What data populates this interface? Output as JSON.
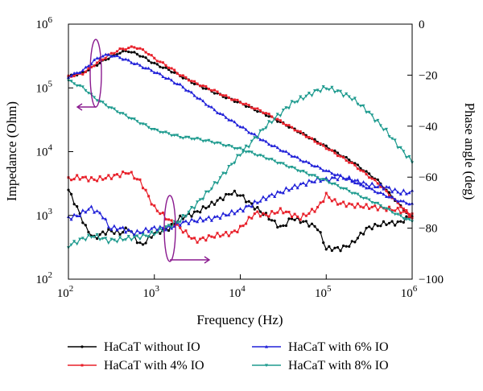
{
  "chart_data": {
    "type": "line",
    "title": "",
    "xlabel": "Frequency (Hz)",
    "ylabel_left": "Impedance (Ohm)",
    "ylabel_right": "Phase angle (deg)",
    "x_scale": "log",
    "y_left_scale": "log",
    "xlim": [
      100,
      1000000
    ],
    "ylim_left": [
      100,
      1000000
    ],
    "ylim_right": [
      -100,
      0
    ],
    "x_tick_labels": [
      {
        "base": "10",
        "exp": "2"
      },
      {
        "base": "10",
        "exp": "3"
      },
      {
        "base": "10",
        "exp": "4"
      },
      {
        "base": "10",
        "exp": "5"
      },
      {
        "base": "10",
        "exp": "6"
      }
    ],
    "y_left_tick_labels": [
      {
        "base": "10",
        "exp": "2"
      },
      {
        "base": "10",
        "exp": "3"
      },
      {
        "base": "10",
        "exp": "4"
      },
      {
        "base": "10",
        "exp": "5"
      },
      {
        "base": "10",
        "exp": "6"
      }
    ],
    "y_right_tick_labels": [
      "0",
      "−20",
      "−40",
      "−60",
      "−80",
      "−100"
    ],
    "grid": false,
    "legend_position": "bottom",
    "series": [
      {
        "name": "HaCaT without IO",
        "color": "#000000",
        "marker": "circle",
        "impedance": [
          [
            100,
            150000
          ],
          [
            150,
            175000
          ],
          [
            200,
            220000
          ],
          [
            300,
            300000
          ],
          [
            400,
            360000
          ],
          [
            500,
            380000
          ],
          [
            700,
            320000
          ],
          [
            1000,
            240000
          ],
          [
            1500,
            190000
          ],
          [
            2000,
            155000
          ],
          [
            3000,
            115000
          ],
          [
            5000,
            85000
          ],
          [
            7000,
            70000
          ],
          [
            10000,
            58000
          ],
          [
            20000,
            38000
          ],
          [
            50000,
            20000
          ],
          [
            100000,
            12000
          ],
          [
            200000,
            7000
          ],
          [
            400000,
            3500
          ],
          [
            700000,
            1500
          ],
          [
            1000000,
            900
          ]
        ],
        "phase": [
          [
            100,
            -65
          ],
          [
            130,
            -73
          ],
          [
            160,
            -80
          ],
          [
            200,
            -84
          ],
          [
            250,
            -82
          ],
          [
            300,
            -81
          ],
          [
            400,
            -82
          ],
          [
            500,
            -80
          ],
          [
            700,
            -87
          ],
          [
            1000,
            -82
          ],
          [
            1500,
            -80
          ],
          [
            2000,
            -76
          ],
          [
            3000,
            -74
          ],
          [
            5000,
            -70
          ],
          [
            8000,
            -66
          ],
          [
            10000,
            -67
          ],
          [
            15000,
            -72
          ],
          [
            20000,
            -75
          ],
          [
            30000,
            -80
          ],
          [
            40000,
            -76
          ],
          [
            60000,
            -78
          ],
          [
            80000,
            -80
          ],
          [
            100000,
            -88
          ],
          [
            150000,
            -88
          ],
          [
            200000,
            -86
          ],
          [
            300000,
            -80
          ],
          [
            500000,
            -78
          ],
          [
            700000,
            -78
          ],
          [
            1000000,
            -75
          ]
        ]
      },
      {
        "name": "HaCaT with 4% IO",
        "color": "#e8202a",
        "marker": "square",
        "impedance": [
          [
            100,
            150000
          ],
          [
            150,
            170000
          ],
          [
            200,
            230000
          ],
          [
            300,
            330000
          ],
          [
            400,
            400000
          ],
          [
            600,
            440000
          ],
          [
            800,
            370000
          ],
          [
            1000,
            290000
          ],
          [
            1500,
            210000
          ],
          [
            2000,
            160000
          ],
          [
            3000,
            120000
          ],
          [
            5000,
            90000
          ],
          [
            7000,
            72000
          ],
          [
            10000,
            60000
          ],
          [
            20000,
            40000
          ],
          [
            50000,
            20000
          ],
          [
            100000,
            11500
          ],
          [
            200000,
            6500
          ],
          [
            400000,
            3200
          ],
          [
            700000,
            1500
          ],
          [
            1000000,
            950
          ]
        ],
        "phase": [
          [
            100,
            -61
          ],
          [
            130,
            -60
          ],
          [
            200,
            -61
          ],
          [
            300,
            -60
          ],
          [
            400,
            -59
          ],
          [
            500,
            -58
          ],
          [
            700,
            -62
          ],
          [
            1000,
            -72
          ],
          [
            1500,
            -77
          ],
          [
            2000,
            -80
          ],
          [
            3000,
            -85
          ],
          [
            5000,
            -83
          ],
          [
            8000,
            -82
          ],
          [
            10000,
            -80
          ],
          [
            15000,
            -74
          ],
          [
            20000,
            -75
          ],
          [
            30000,
            -73
          ],
          [
            50000,
            -76
          ],
          [
            80000,
            -72
          ],
          [
            100000,
            -67
          ],
          [
            130000,
            -70
          ],
          [
            200000,
            -71
          ],
          [
            400000,
            -72
          ],
          [
            700000,
            -73
          ],
          [
            1000000,
            -75
          ]
        ]
      },
      {
        "name": "HaCaT with 6% IO",
        "color": "#2020d8",
        "marker": "triangle",
        "impedance": [
          [
            100,
            150000
          ],
          [
            150,
            190000
          ],
          [
            200,
            270000
          ],
          [
            250,
            320000
          ],
          [
            300,
            330000
          ],
          [
            400,
            300000
          ],
          [
            600,
            240000
          ],
          [
            1000,
            180000
          ],
          [
            2000,
            110000
          ],
          [
            3000,
            75000
          ],
          [
            5000,
            45000
          ],
          [
            10000,
            25000
          ],
          [
            20000,
            14000
          ],
          [
            50000,
            7500
          ],
          [
            100000,
            5000
          ],
          [
            200000,
            3500
          ],
          [
            400000,
            2300
          ],
          [
            700000,
            1700
          ],
          [
            1000000,
            1500
          ]
        ],
        "phase": [
          [
            100,
            -76
          ],
          [
            130,
            -75
          ],
          [
            180,
            -72
          ],
          [
            250,
            -75
          ],
          [
            300,
            -80
          ],
          [
            400,
            -80
          ],
          [
            600,
            -82
          ],
          [
            1000,
            -80
          ],
          [
            1500,
            -80
          ],
          [
            2000,
            -78
          ],
          [
            3000,
            -77
          ],
          [
            5000,
            -76
          ],
          [
            10000,
            -73
          ],
          [
            20000,
            -68
          ],
          [
            50000,
            -63
          ],
          [
            80000,
            -61
          ],
          [
            100000,
            -61
          ],
          [
            150000,
            -60
          ],
          [
            200000,
            -61
          ],
          [
            300000,
            -63
          ],
          [
            500000,
            -64
          ],
          [
            700000,
            -66
          ],
          [
            1000000,
            -66
          ]
        ]
      },
      {
        "name": "HaCaT with 8% IO",
        "color": "#1f9b8f",
        "marker": "inverted-triangle",
        "impedance": [
          [
            100,
            130000
          ],
          [
            150,
            100000
          ],
          [
            200,
            70000
          ],
          [
            300,
            50000
          ],
          [
            500,
            35000
          ],
          [
            700,
            28000
          ],
          [
            1000,
            22000
          ],
          [
            1500,
            19000
          ],
          [
            2000,
            17000
          ],
          [
            3000,
            16000
          ],
          [
            5000,
            14000
          ],
          [
            10000,
            11000
          ],
          [
            20000,
            8000
          ],
          [
            50000,
            5000
          ],
          [
            100000,
            3500
          ],
          [
            200000,
            2300
          ],
          [
            400000,
            1500
          ],
          [
            700000,
            1000
          ],
          [
            1000000,
            800
          ]
        ],
        "phase": [
          [
            100,
            -87
          ],
          [
            150,
            -84
          ],
          [
            200,
            -83
          ],
          [
            300,
            -85
          ],
          [
            500,
            -84
          ],
          [
            800,
            -83
          ],
          [
            1000,
            -82
          ],
          [
            2000,
            -77
          ],
          [
            3000,
            -71
          ],
          [
            5000,
            -63
          ],
          [
            10000,
            -51
          ],
          [
            20000,
            -40
          ],
          [
            40000,
            -31
          ],
          [
            60000,
            -28
          ],
          [
            80000,
            -26
          ],
          [
            100000,
            -25
          ],
          [
            130000,
            -26
          ],
          [
            200000,
            -29
          ],
          [
            300000,
            -34
          ],
          [
            500000,
            -42
          ],
          [
            700000,
            -48
          ],
          [
            1000000,
            -54
          ]
        ]
      }
    ],
    "annotations": [
      {
        "type": "ellipse-arrow",
        "target_axis": "left",
        "color": "#8a1a8f"
      },
      {
        "type": "ellipse-arrow",
        "target_axis": "right",
        "color": "#8a1a8f"
      }
    ]
  }
}
